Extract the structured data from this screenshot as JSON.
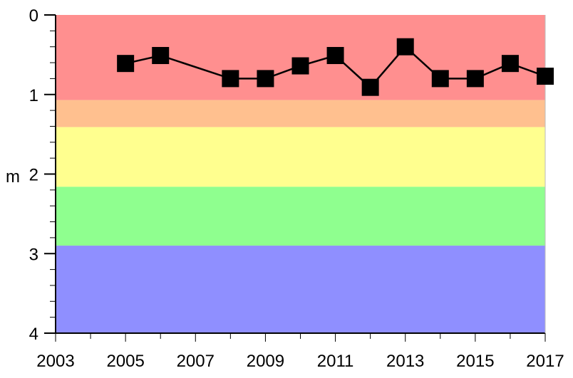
{
  "chart_data": {
    "type": "line",
    "title": "",
    "xlabel": "",
    "ylabel": "m",
    "xlim": [
      2003,
      2017
    ],
    "ylim": [
      0,
      4
    ],
    "y_inverted": true,
    "x_ticks": [
      "2003",
      "2005",
      "2007",
      "2009",
      "2011",
      "2013",
      "2015",
      "2017"
    ],
    "y_ticks": [
      "0",
      "1",
      "2",
      "3",
      "4"
    ],
    "grid": false,
    "bands": [
      {
        "from": 0.0,
        "to": 1.07,
        "color": "#ff8f8f"
      },
      {
        "from": 1.07,
        "to": 1.41,
        "color": "#ffc08f"
      },
      {
        "from": 1.41,
        "to": 2.16,
        "color": "#ffff8f"
      },
      {
        "from": 2.16,
        "to": 2.9,
        "color": "#8fff8f"
      },
      {
        "from": 2.9,
        "to": 4.0,
        "color": "#8f8fff"
      }
    ],
    "series": [
      {
        "color": "#000000",
        "marker": "square",
        "x": [
          2005,
          2006,
          2008,
          2009,
          2010,
          2011,
          2012,
          2013,
          2014,
          2015,
          2016,
          2017
        ],
        "y": [
          0.61,
          0.51,
          0.8,
          0.8,
          0.64,
          0.51,
          0.91,
          0.4,
          0.8,
          0.8,
          0.61,
          0.77
        ]
      }
    ]
  }
}
